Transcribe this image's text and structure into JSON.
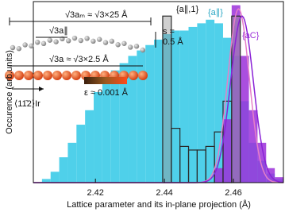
{
  "chart_data": {
    "type": "histogram",
    "x_label": "Lattice parameter and its in-plane projection (Å)",
    "y_label": "Occurence (arb.units)",
    "xlim": [
      2.402,
      2.4745
    ],
    "ylim": [
      0,
      100
    ],
    "xticks": [
      2.42,
      2.44,
      2.46
    ],
    "bins": [
      2.402,
      2.4045,
      2.407,
      2.4095,
      2.412,
      2.4145,
      2.417,
      2.4195,
      2.422,
      2.4245,
      2.427,
      2.4295,
      2.432,
      2.4345,
      2.437,
      2.4395,
      2.442,
      2.4445,
      2.447,
      2.4495,
      2.452,
      2.4545,
      2.457,
      2.4595,
      2.462,
      2.4645,
      2.467,
      2.4695,
      2.472,
      2.4745
    ],
    "series": [
      {
        "name": "{a∥}",
        "color": "#4fd0ea",
        "style": "filled",
        "values": [
          0,
          2,
          6,
          14,
          22,
          32,
          40,
          50,
          56,
          62,
          66,
          70,
          73,
          76,
          79,
          82,
          84,
          84,
          86,
          88,
          90,
          88,
          80,
          70,
          45,
          22,
          12,
          5,
          2
        ]
      },
      {
        "name": "{aC}",
        "color": "#9b30d9",
        "style": "filled",
        "values": [
          0,
          0,
          0,
          0,
          0,
          0,
          0,
          0,
          0,
          0,
          0,
          0,
          0,
          0,
          0,
          0,
          0,
          0,
          0,
          0,
          0,
          8,
          35,
          98,
          70,
          40,
          22,
          8,
          3
        ]
      },
      {
        "name": "{a∥,1}",
        "color": "#2a2a2a",
        "style": "outline",
        "values": [
          0,
          0,
          0,
          0,
          0,
          0,
          0,
          0,
          0,
          0,
          0,
          0,
          0,
          0,
          0,
          92,
          30,
          20,
          18,
          18,
          20,
          28,
          45,
          92,
          0,
          0,
          0,
          0,
          0
        ]
      }
    ],
    "fits": [
      {
        "color": "#e67fc8",
        "center": 2.4615,
        "sigma": 0.0031,
        "amplitude": 96
      },
      {
        "color": "#8a22d6",
        "center": 2.4625,
        "sigma": 0.0033,
        "amplitude": 92
      }
    ],
    "annotations": {
      "moire": "√3aₘ ≈ √3×25 Å",
      "parallel": "√3a∥",
      "s_label": "s =",
      "s_value": "0.5 Å",
      "substrate": "√3a ≈ √3×2.5 Å",
      "epsilon": "ε ≈ 0.001 Å",
      "direction": "⟨11̄2⟩Ir"
    }
  }
}
